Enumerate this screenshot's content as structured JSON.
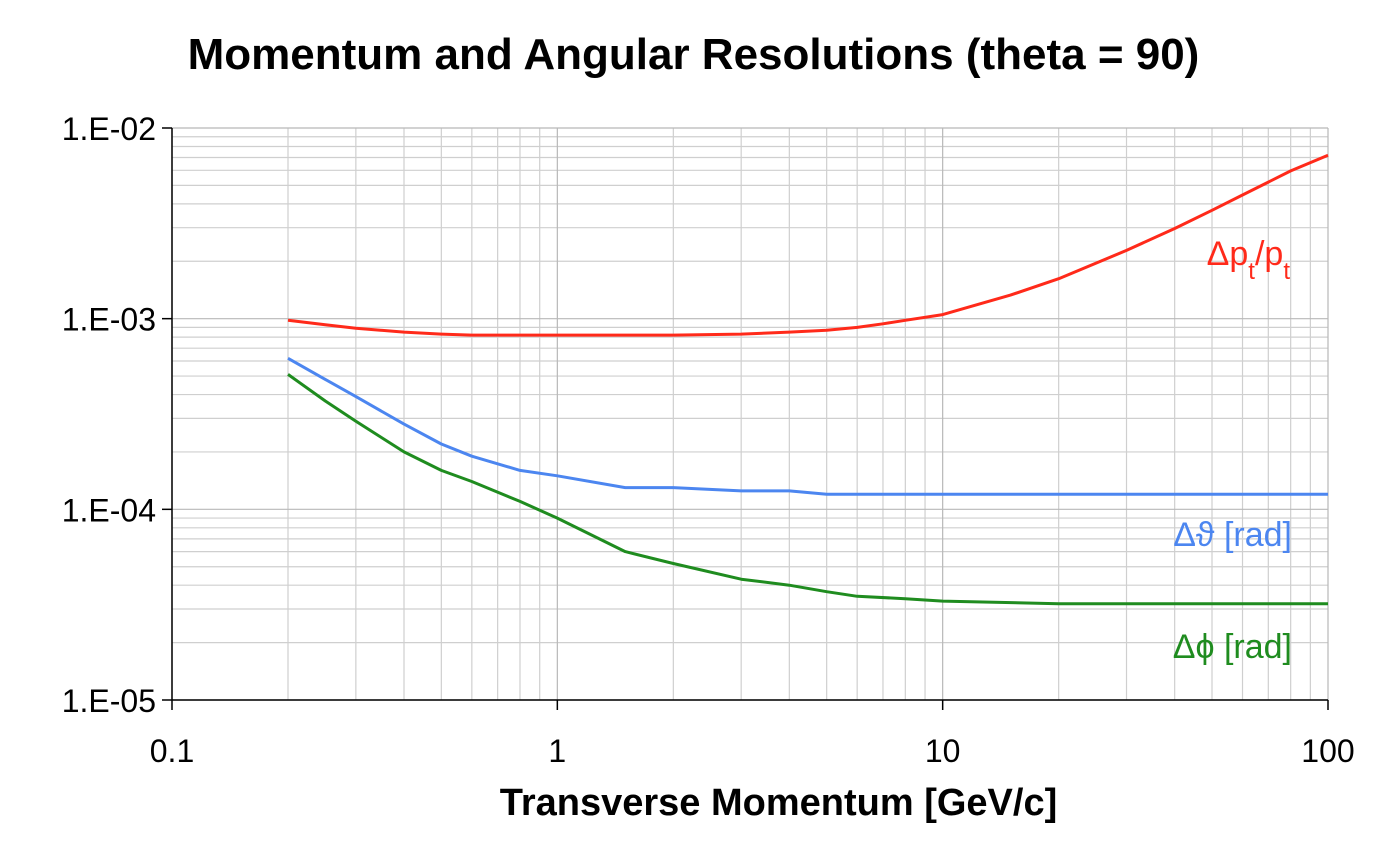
{
  "chart_data": {
    "type": "line",
    "title": "Momentum and Angular Resolutions (theta = 90)",
    "xlabel": "Transverse Momentum [GeV/c]",
    "ylabel": "",
    "x_scale": "log",
    "y_scale": "log",
    "xlim": [
      0.1,
      100
    ],
    "ylim": [
      1e-05,
      0.01
    ],
    "x_ticks": [
      "0.1",
      "1",
      "10",
      "100"
    ],
    "y_ticks": [
      "1.E-02",
      "1.E-03",
      "1.E-04",
      "1.E-05"
    ],
    "grid": true,
    "series": [
      {
        "name": "Δpt/pt",
        "color": "#ff2a1a",
        "label_pos": "upper-right",
        "x": [
          0.2,
          0.25,
          0.3,
          0.4,
          0.5,
          0.6,
          0.8,
          1,
          1.5,
          2,
          3,
          4,
          5,
          6,
          7,
          8,
          10,
          15,
          20,
          30,
          40,
          50,
          60,
          70,
          80,
          100
        ],
        "y": [
          0.00098,
          0.00093,
          0.00089,
          0.00085,
          0.00083,
          0.00082,
          0.00082,
          0.00082,
          0.00082,
          0.00082,
          0.00083,
          0.00085,
          0.00087,
          0.0009,
          0.00094,
          0.00098,
          0.00105,
          0.00133,
          0.00162,
          0.00228,
          0.00297,
          0.0037,
          0.00445,
          0.0052,
          0.00596,
          0.0072
        ]
      },
      {
        "name": "Δϑ [rad]",
        "color": "#4c86f0",
        "label_pos": "right",
        "x": [
          0.2,
          0.25,
          0.3,
          0.4,
          0.5,
          0.6,
          0.8,
          1,
          1.5,
          2,
          3,
          4,
          5,
          10,
          20,
          50,
          100
        ],
        "y": [
          0.00062,
          0.00048,
          0.00039,
          0.00028,
          0.00022,
          0.00019,
          0.00016,
          0.00015,
          0.00013,
          0.00013,
          0.000125,
          0.000125,
          0.00012,
          0.00012,
          0.00012,
          0.00012,
          0.00012
        ]
      },
      {
        "name": "Δϕ [rad]",
        "color": "#1f8c1f",
        "label_pos": "lower-right",
        "x": [
          0.2,
          0.25,
          0.3,
          0.4,
          0.5,
          0.6,
          0.8,
          1,
          1.5,
          2,
          3,
          4,
          5,
          6,
          8,
          10,
          20,
          50,
          100
        ],
        "y": [
          0.00051,
          0.00037,
          0.00029,
          0.0002,
          0.00016,
          0.00014,
          0.00011,
          9e-05,
          6e-05,
          5.2e-05,
          4.3e-05,
          4e-05,
          3.7e-05,
          3.5e-05,
          3.4e-05,
          3.3e-05,
          3.2e-05,
          3.2e-05,
          3.2e-05
        ]
      }
    ]
  }
}
